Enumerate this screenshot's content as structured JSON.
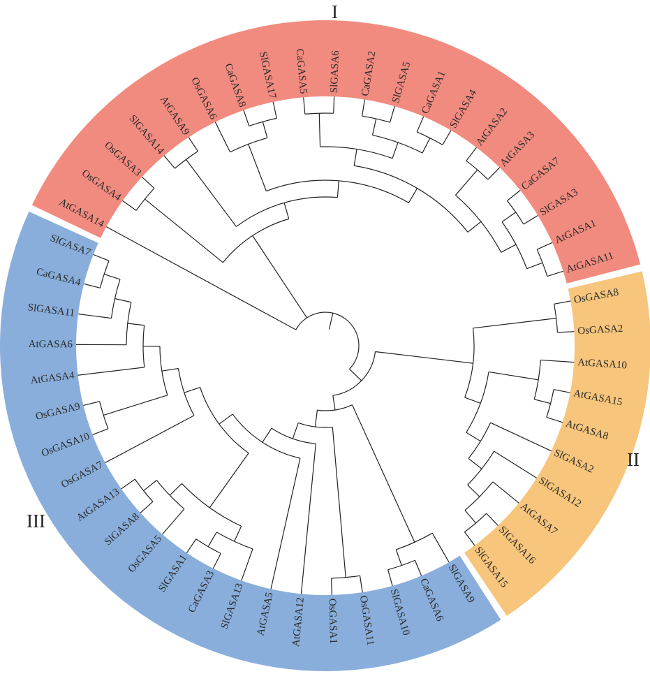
{
  "groups": [
    {
      "label": "I",
      "color": "#f28b7f"
    },
    {
      "label": "II",
      "color": "#f7c57b"
    },
    {
      "label": "III",
      "color": "#89aedb"
    }
  ],
  "leaves": [
    {
      "name": "AtGASA14",
      "group": 0
    },
    {
      "name": "OsGASA4",
      "group": 0
    },
    {
      "name": "OsGASA3",
      "group": 0
    },
    {
      "name": "SlGASA14",
      "group": 0
    },
    {
      "name": "AtGASA9",
      "group": 0
    },
    {
      "name": "OsGASA6",
      "group": 0
    },
    {
      "name": "CaGASA8",
      "group": 0
    },
    {
      "name": "SlGASA17",
      "group": 0
    },
    {
      "name": "CaGASA5",
      "group": 0
    },
    {
      "name": "SlGASA6",
      "group": 0
    },
    {
      "name": "CaGASA2",
      "group": 0
    },
    {
      "name": "SlGASA5",
      "group": 0
    },
    {
      "name": "CaGASA1",
      "group": 0
    },
    {
      "name": "SlGASA4",
      "group": 0
    },
    {
      "name": "AtGASA2",
      "group": 0
    },
    {
      "name": "AtGASA3",
      "group": 0
    },
    {
      "name": "CaGASA7",
      "group": 0
    },
    {
      "name": "SlGASA3",
      "group": 0
    },
    {
      "name": "AtGASA1",
      "group": 0
    },
    {
      "name": "AtGASA11",
      "group": 0
    },
    {
      "name": "OsGASA8",
      "group": 1
    },
    {
      "name": "OsGASA2",
      "group": 1
    },
    {
      "name": "AtGASA10",
      "group": 1
    },
    {
      "name": "AtGASA15",
      "group": 1
    },
    {
      "name": "AtGASA8",
      "group": 1
    },
    {
      "name": "SlGASA2",
      "group": 1
    },
    {
      "name": "SlGASA12",
      "group": 1
    },
    {
      "name": "AtGASA7",
      "group": 1
    },
    {
      "name": "SlGASA16",
      "group": 1
    },
    {
      "name": "SlGASA15",
      "group": 1
    },
    {
      "name": "SlGASA9",
      "group": 2
    },
    {
      "name": "CaGASA6",
      "group": 2
    },
    {
      "name": "SlGASA10",
      "group": 2
    },
    {
      "name": "OsGASA11",
      "group": 2
    },
    {
      "name": "OsGASA1",
      "group": 2
    },
    {
      "name": "AtGASA12",
      "group": 2
    },
    {
      "name": "AtGASA5",
      "group": 2
    },
    {
      "name": "SlGASA13",
      "group": 2
    },
    {
      "name": "CaGASA3",
      "group": 2
    },
    {
      "name": "SlGASA1",
      "group": 2
    },
    {
      "name": "OsGASA5",
      "group": 2
    },
    {
      "name": "SlGASA8",
      "group": 2
    },
    {
      "name": "AtGASA13",
      "group": 2
    },
    {
      "name": "OsGASA7",
      "group": 2
    },
    {
      "name": "OsGASA10",
      "group": 2
    },
    {
      "name": "OsGASA9",
      "group": 2
    },
    {
      "name": "AtGASA4",
      "group": 2
    },
    {
      "name": "AtGASA6",
      "group": 2
    },
    {
      "name": "SlGASA11",
      "group": 2
    },
    {
      "name": "CaGASA4",
      "group": 2
    },
    {
      "name": "SlGASA7",
      "group": 2
    }
  ],
  "tree_topology": [
    0,
    [
      [
        1,
        2
      ],
      [
        [
          3,
          4
        ],
        [
          [
            5,
            [
              6,
              7
            ]
          ],
          [
            [
              [
                8,
                9
              ],
              [
                [
                  10,
                  11
                ],
                [
                  12,
                  13
                ]
              ]
            ],
            [
              [
                14,
                15
              ],
              [
                [
                  16,
                  17
                ],
                [
                  18,
                  19
                ]
              ]
            ]
          ]
        ]
      ]
    ],
    [
      [
        [
          20,
          21
        ],
        [
          [
            22,
            [
              23,
              24
            ]
          ],
          [
            25,
            [
              26,
              [
                27,
                [
                  28,
                  29
                ]
              ]
            ]
          ]
        ]
      ],
      [
        [
          30,
          [
            31,
            32
          ]
        ],
        [
          [
            33,
            34
          ],
          [
            35,
            [
              36,
              [
                [
                  [
                    37,
                    [
                      38,
                      39
                    ]
                  ],
                  [
                    40,
                    [
                      41,
                      42
                    ]
                  ]
                ],
                [
                  43,
                  [
                    [
                      44,
                      45
                    ],
                    [
                      46,
                      [
                        47,
                        [
                          48,
                          [
                            49,
                            50
                          ]
                        ]
                      ]
                    ]
                  ]
                ]
              ]
            ]
          ]
        ]
      ]
    ]
  ]
}
